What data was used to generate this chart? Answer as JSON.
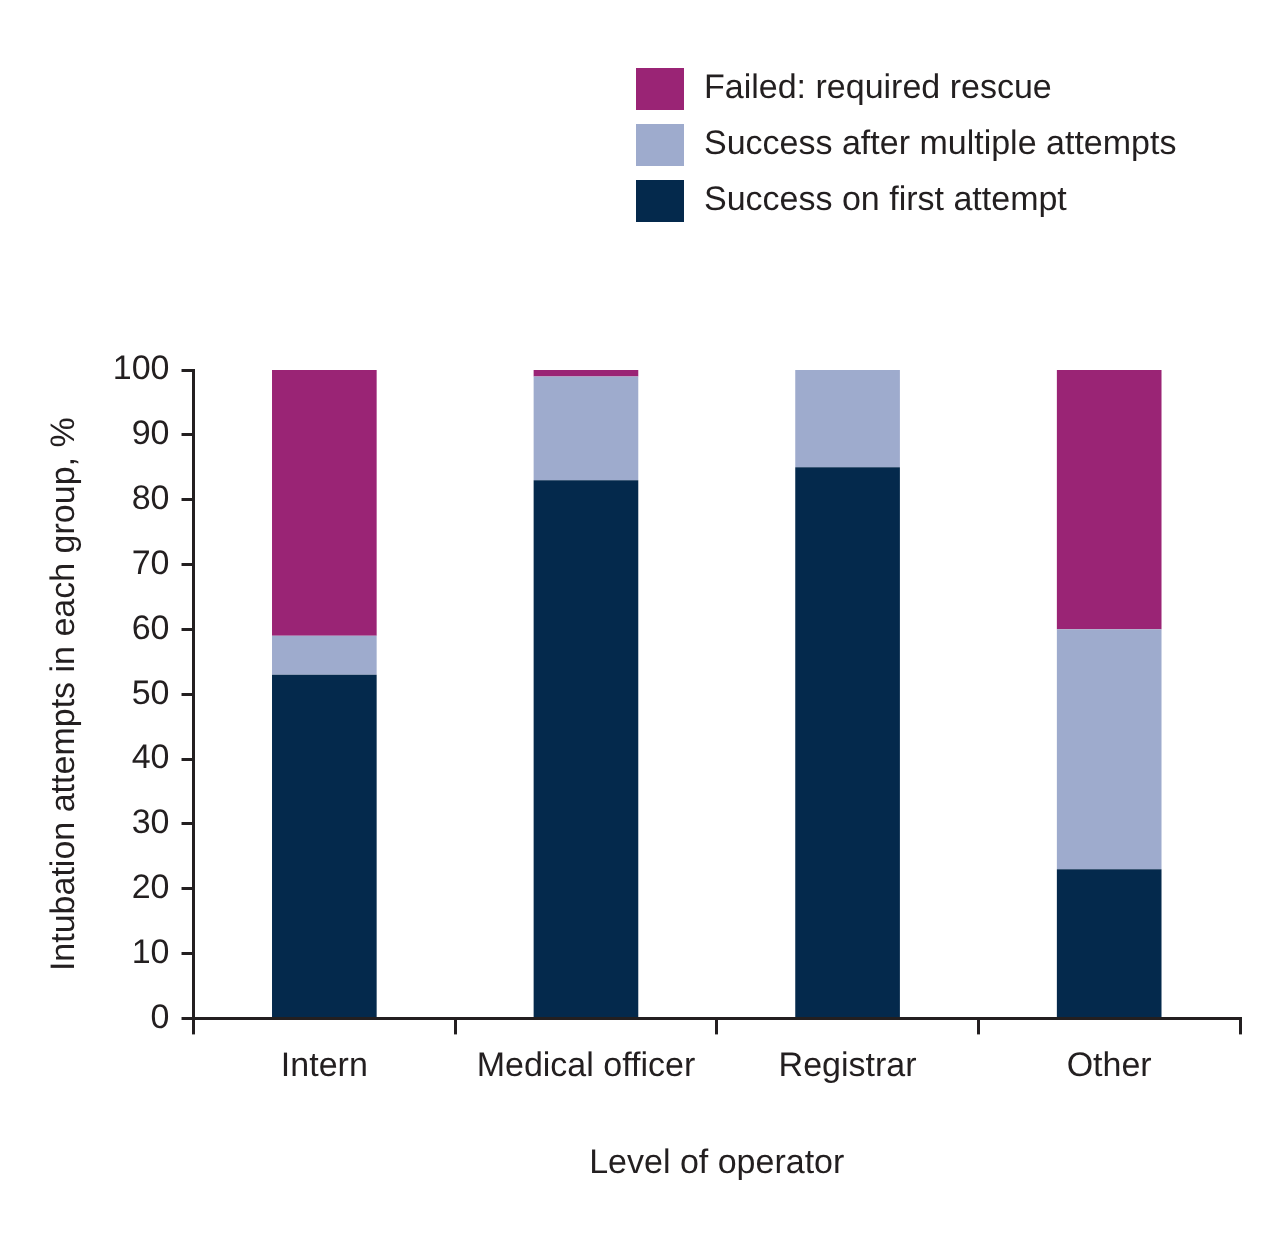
{
  "chart_data": {
    "type": "bar",
    "stacked": true,
    "xlabel": "Level of operator",
    "ylabel": "Intubation attempts in each group, %",
    "categories": [
      "Intern",
      "Medical officer",
      "Registrar",
      "Other"
    ],
    "series": [
      {
        "name": "Success on first attempt",
        "color": "#04294c",
        "values": [
          53,
          83,
          85,
          23
        ]
      },
      {
        "name": "Success after multiple attempts",
        "color": "#9eabcd",
        "values": [
          6,
          16,
          15,
          37
        ]
      },
      {
        "name": "Failed: required rescue",
        "color": "#9a2475",
        "values": [
          41,
          1,
          0,
          40
        ]
      }
    ],
    "ylim": [
      0,
      100
    ],
    "yticks": [
      0,
      10,
      20,
      30,
      40,
      50,
      60,
      70,
      80,
      90,
      100
    ],
    "grid": false,
    "legend": "top right"
  }
}
